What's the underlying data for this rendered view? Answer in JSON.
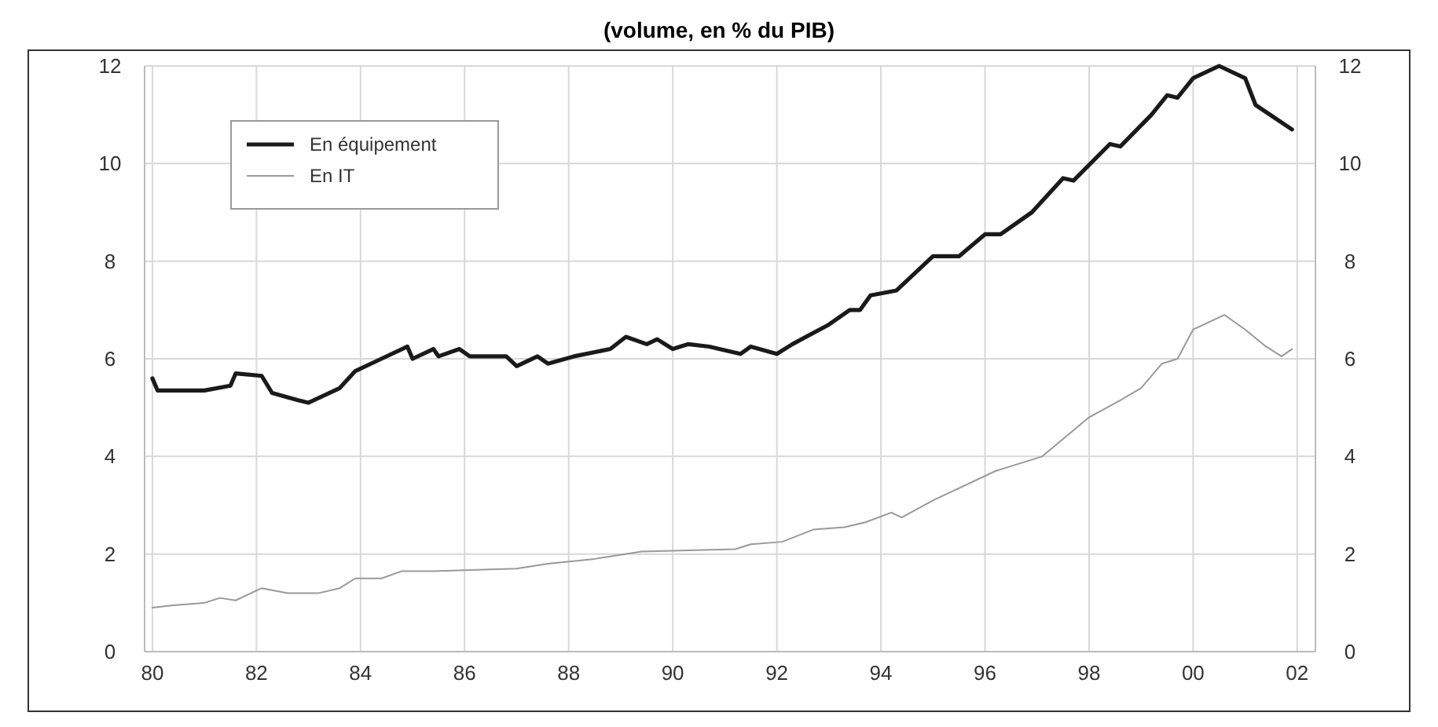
{
  "chart_data": {
    "type": "line",
    "title": "(volume, en % du PIB)",
    "xlim": [
      1979.85,
      2002.35
    ],
    "xticks": [
      {
        "value": 1980,
        "label": "80"
      },
      {
        "value": 1982,
        "label": "82"
      },
      {
        "value": 1984,
        "label": "84"
      },
      {
        "value": 1986,
        "label": "86"
      },
      {
        "value": 1988,
        "label": "88"
      },
      {
        "value": 1990,
        "label": "90"
      },
      {
        "value": 1992,
        "label": "92"
      },
      {
        "value": 1994,
        "label": "94"
      },
      {
        "value": 1996,
        "label": "96"
      },
      {
        "value": 1998,
        "label": "98"
      },
      {
        "value": 2000,
        "label": "00"
      },
      {
        "value": 2002,
        "label": "02"
      }
    ],
    "ylim": [
      0,
      12
    ],
    "yticks": [
      0,
      2,
      4,
      6,
      8,
      10,
      12
    ],
    "y2lim": [
      0,
      12
    ],
    "y2ticks": [
      0,
      2,
      4,
      6,
      8,
      10,
      12
    ],
    "grid": true,
    "legend": "top left",
    "line_style": "solid",
    "marker": "none",
    "series": [
      {
        "name": "En équipement",
        "color": "#1a1a1a",
        "x": [
          1980,
          1980.1,
          1981,
          1981.5,
          1981.6,
          1982.1,
          1982.3,
          1982.8,
          1983,
          1983.6,
          1983.9,
          1984.4,
          1984.9,
          1985,
          1985.4,
          1985.5,
          1985.9,
          1986.1,
          1986.8,
          1987,
          1987.4,
          1987.6,
          1988.1,
          1988.8,
          1989.1,
          1989.5,
          1989.7,
          1990,
          1990.3,
          1990.7,
          1991.3,
          1991.5,
          1992,
          1992.3,
          1993,
          1993.4,
          1993.6,
          1993.8,
          1994.3,
          1995,
          1995.5,
          1996,
          1996.3,
          1996.9,
          1997.5,
          1997.7,
          1998.4,
          1998.6,
          1999.2,
          1999.5,
          1999.7,
          2000,
          2000.5,
          2001,
          2001.2,
          2001.9
        ],
        "values": [
          5.6,
          5.35,
          5.35,
          5.45,
          5.7,
          5.65,
          5.3,
          5.15,
          5.1,
          5.4,
          5.75,
          6.0,
          6.25,
          6.0,
          6.2,
          6.05,
          6.2,
          6.05,
          6.05,
          5.85,
          6.05,
          5.9,
          6.05,
          6.2,
          6.45,
          6.3,
          6.4,
          6.2,
          6.3,
          6.25,
          6.1,
          6.25,
          6.1,
          6.3,
          6.7,
          7.0,
          7.0,
          7.3,
          7.4,
          8.1,
          8.1,
          8.55,
          8.55,
          9.0,
          9.7,
          9.65,
          10.4,
          10.35,
          11.0,
          11.4,
          11.35,
          11.75,
          12.0,
          11.75,
          11.2,
          10.7
        ]
      },
      {
        "name": "En IT",
        "color": "#999999",
        "x": [
          1980,
          1980.4,
          1981,
          1981.3,
          1981.6,
          1982.1,
          1982.6,
          1983.2,
          1983.6,
          1983.9,
          1984.4,
          1984.8,
          1985.4,
          1987,
          1987.6,
          1988.5,
          1989.4,
          1991.2,
          1991.5,
          1992.1,
          1992.7,
          1993.3,
          1993.7,
          1994.2,
          1994.4,
          1995,
          1996.2,
          1997.1,
          1998,
          1998.6,
          1999,
          1999.4,
          1999.7,
          2000,
          2000.6,
          2001,
          2001.4,
          2001.7,
          2001.9
        ],
        "values": [
          0.9,
          0.95,
          1.0,
          1.1,
          1.05,
          1.3,
          1.2,
          1.2,
          1.3,
          1.5,
          1.5,
          1.65,
          1.65,
          1.7,
          1.8,
          1.9,
          2.05,
          2.1,
          2.2,
          2.25,
          2.5,
          2.55,
          2.65,
          2.85,
          2.75,
          3.1,
          3.7,
          4.0,
          4.8,
          5.15,
          5.4,
          5.9,
          6.0,
          6.6,
          6.9,
          6.6,
          6.25,
          6.05,
          6.2
        ]
      }
    ]
  }
}
